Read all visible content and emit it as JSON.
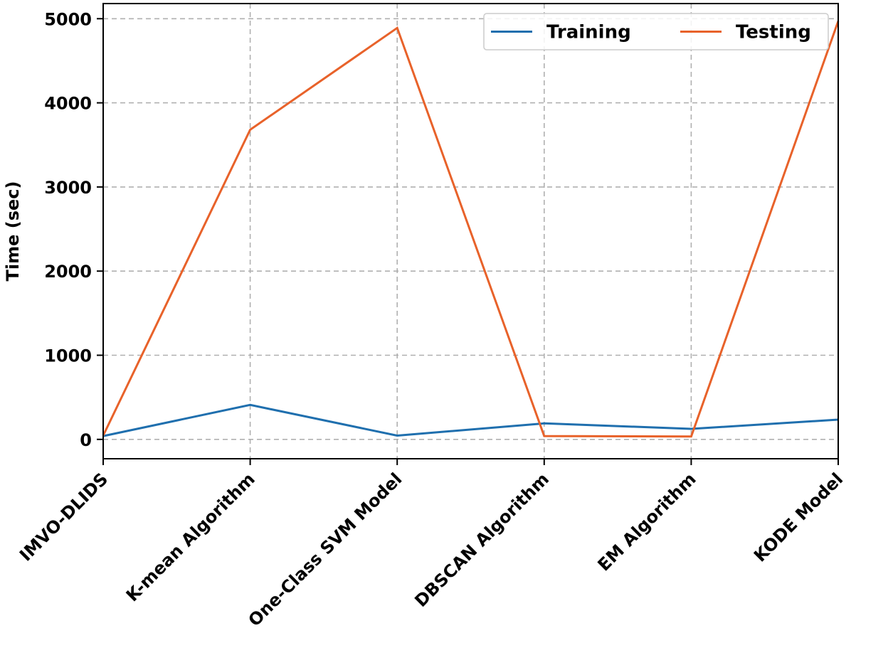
{
  "chart_data": {
    "type": "line",
    "title": "",
    "xlabel": "",
    "ylabel": "Time (sec)",
    "categories": [
      "IMVO-DLIDS",
      "K-mean Algorithm",
      "One-Class SVM Model",
      "DBSCAN Algorithm",
      "EM Algorithm",
      "KODE Model"
    ],
    "series": [
      {
        "name": "Training",
        "color": "#1f6fae",
        "values": [
          40,
          410,
          45,
          190,
          125,
          235
        ]
      },
      {
        "name": "Testing",
        "color": "#e8622a",
        "values": [
          45,
          3680,
          4890,
          40,
          35,
          4970
        ]
      }
    ],
    "yticks": [
      0,
      1000,
      2000,
      3000,
      4000,
      5000
    ],
    "ylim": [
      -230,
      5180
    ],
    "grid": true,
    "legend_position": "top-right"
  }
}
